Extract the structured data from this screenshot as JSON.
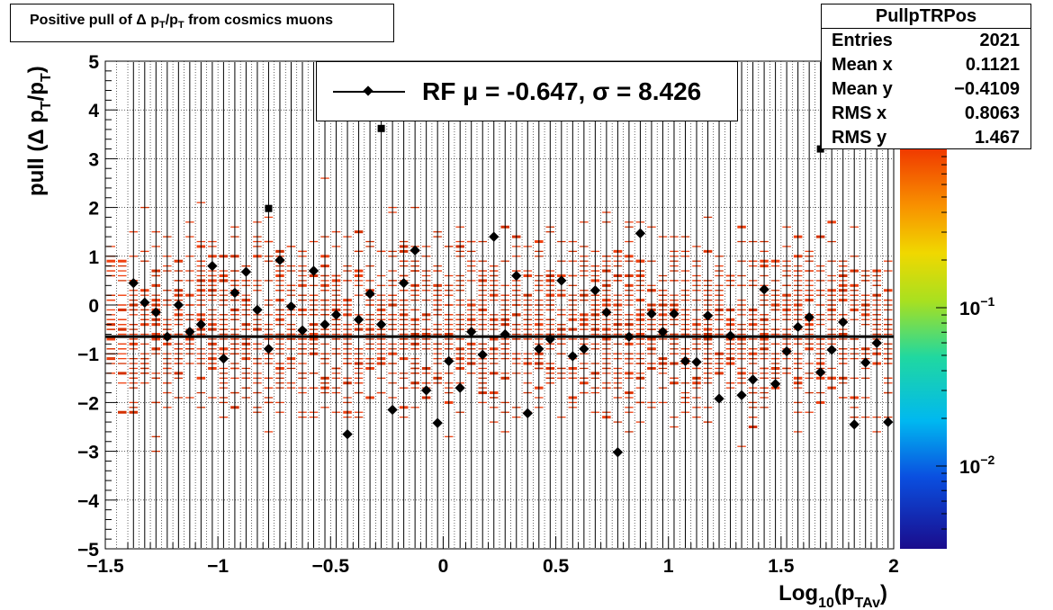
{
  "title": {
    "prefix": "Positive pull of ",
    "delta": "Δ",
    "p": "p",
    "sub": "T",
    "slash": "/p",
    "suffix": " from cosmics muons"
  },
  "stats": {
    "name": "PullpTRPos",
    "rows": [
      {
        "label": "Entries",
        "value": "2021"
      },
      {
        "label": "Mean x",
        "value": "0.1121"
      },
      {
        "label": "Mean y",
        "value": "−0.4109"
      },
      {
        "label": "RMS x",
        "value": "0.8063"
      },
      {
        "label": "RMS y",
        "value": "1.467"
      }
    ]
  },
  "legend": {
    "text": "RF μ = -0.647, σ =   8.426"
  },
  "colors": {
    "fill": "#f03a00",
    "profile": "#000000",
    "fit_line": "#000000"
  },
  "chart_data": {
    "type": "heatmap",
    "title": "Positive pull of Δ pT/pT from cosmics muons",
    "xlabel": "Log10(pTAv)",
    "ylabel": "pull (Δ pT/pT)",
    "xlim": [
      -1.5,
      2
    ],
    "ylim": [
      -5,
      5
    ],
    "x_ticks": [
      "−1.5",
      "−1",
      "−0.5",
      "0",
      "0.5",
      "1",
      "1.5",
      "2"
    ],
    "y_ticks": [
      "−5",
      "−4",
      "−3",
      "−2",
      "−1",
      "0",
      "1",
      "2",
      "3",
      "4",
      "5"
    ],
    "z_scale": "log",
    "z_ticks": [
      {
        "base": "10",
        "exp": "−1",
        "value": 0.1
      },
      {
        "base": "10",
        "exp": "−2",
        "value": 0.01
      }
    ],
    "z_range": [
      0.003,
      1
    ],
    "grid": true,
    "fit": {
      "mean": -0.647,
      "sigma": 8.426
    },
    "profile_points": [
      {
        "x": -1.375,
        "y": 0.45
      },
      {
        "x": -1.325,
        "y": 0.05
      },
      {
        "x": -1.275,
        "y": -0.15
      },
      {
        "x": -1.225,
        "y": -0.65
      },
      {
        "x": -1.175,
        "y": 0.0
      },
      {
        "x": -1.125,
        "y": -0.55
      },
      {
        "x": -1.075,
        "y": -0.4
      },
      {
        "x": -1.025,
        "y": 0.8
      },
      {
        "x": -0.975,
        "y": -1.1
      },
      {
        "x": -0.925,
        "y": 0.25
      },
      {
        "x": -0.875,
        "y": 0.68
      },
      {
        "x": -0.825,
        "y": -0.1
      },
      {
        "x": -0.775,
        "y": -0.9
      },
      {
        "x": -0.725,
        "y": 0.92
      },
      {
        "x": -0.675,
        "y": -0.03
      },
      {
        "x": -0.625,
        "y": -0.52
      },
      {
        "x": -0.575,
        "y": 0.7
      },
      {
        "x": -0.525,
        "y": -0.4
      },
      {
        "x": -0.475,
        "y": -0.2
      },
      {
        "x": -0.425,
        "y": -2.65
      },
      {
        "x": -0.375,
        "y": -0.3
      },
      {
        "x": -0.325,
        "y": 0.23
      },
      {
        "x": -0.275,
        "y": -0.4
      },
      {
        "x": -0.225,
        "y": -2.15
      },
      {
        "x": -0.175,
        "y": 0.45
      },
      {
        "x": -0.125,
        "y": 1.12
      },
      {
        "x": -0.075,
        "y": -1.75
      },
      {
        "x": -0.025,
        "y": -2.42
      },
      {
        "x": 0.025,
        "y": -1.15
      },
      {
        "x": 0.075,
        "y": -1.7
      },
      {
        "x": 0.125,
        "y": -0.55
      },
      {
        "x": 0.175,
        "y": -1.02
      },
      {
        "x": 0.225,
        "y": 1.4
      },
      {
        "x": 0.275,
        "y": -0.6
      },
      {
        "x": 0.325,
        "y": 0.6
      },
      {
        "x": 0.375,
        "y": -2.22
      },
      {
        "x": 0.425,
        "y": -0.9
      },
      {
        "x": 0.475,
        "y": -0.7
      },
      {
        "x": 0.525,
        "y": 0.5
      },
      {
        "x": 0.575,
        "y": -1.05
      },
      {
        "x": 0.625,
        "y": -0.9
      },
      {
        "x": 0.675,
        "y": 0.3
      },
      {
        "x": 0.725,
        "y": -0.15
      },
      {
        "x": 0.775,
        "y": -3.02
      },
      {
        "x": 0.825,
        "y": -0.65
      },
      {
        "x": 0.875,
        "y": 1.47
      },
      {
        "x": 0.925,
        "y": -0.18
      },
      {
        "x": 0.975,
        "y": -0.55
      },
      {
        "x": 1.025,
        "y": -0.18
      },
      {
        "x": 1.075,
        "y": -1.15
      },
      {
        "x": 1.125,
        "y": -1.17
      },
      {
        "x": 1.175,
        "y": -0.22
      },
      {
        "x": 1.225,
        "y": -1.92
      },
      {
        "x": 1.275,
        "y": -0.63
      },
      {
        "x": 1.325,
        "y": -1.85
      },
      {
        "x": 1.375,
        "y": -1.53
      },
      {
        "x": 1.425,
        "y": 0.32
      },
      {
        "x": 1.475,
        "y": -1.62
      },
      {
        "x": 1.525,
        "y": -0.95
      },
      {
        "x": 1.575,
        "y": -0.45
      },
      {
        "x": 1.625,
        "y": -0.25
      },
      {
        "x": 1.675,
        "y": -1.38
      },
      {
        "x": 1.725,
        "y": -0.92
      },
      {
        "x": 1.775,
        "y": -0.35
      },
      {
        "x": 1.825,
        "y": -2.45
      },
      {
        "x": 1.875,
        "y": -1.18
      },
      {
        "x": 1.925,
        "y": -0.78
      },
      {
        "x": 1.975,
        "y": -2.4
      }
    ],
    "square_points": [
      {
        "x": -0.775,
        "y": 1.98
      },
      {
        "x": -0.275,
        "y": 3.62
      },
      {
        "x": 1.675,
        "y": 3.2
      }
    ]
  }
}
